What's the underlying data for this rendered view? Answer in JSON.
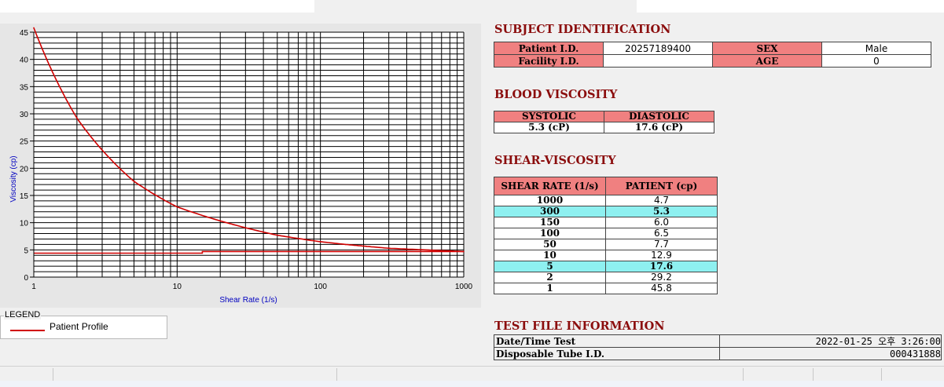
{
  "chart_data": {
    "type": "line",
    "xlabel": "Shear Rate (1/s)",
    "ylabel": "Viscosity (cp)",
    "xscale": "log",
    "xlim": [
      1,
      1000
    ],
    "ylim": [
      0,
      45
    ],
    "x_ticks": [
      "1",
      "10",
      "100",
      "1000"
    ],
    "y_ticks": [
      "0",
      "5",
      "10",
      "15",
      "20",
      "25",
      "30",
      "35",
      "40",
      "45"
    ],
    "grid": true,
    "series": [
      {
        "name": "Patient Profile",
        "color": "#d00000",
        "x": [
          1,
          2,
          5,
          10,
          50,
          100,
          150,
          300,
          1000
        ],
        "y": [
          45.8,
          29.2,
          17.6,
          12.9,
          7.7,
          6.5,
          6.0,
          5.3,
          4.7
        ]
      },
      {
        "color": "#d00000",
        "x": [
          1,
          15,
          15,
          1000
        ],
        "y": [
          4.4,
          4.4,
          4.7,
          4.7
        ]
      }
    ]
  },
  "legend": {
    "title": "LEGEND",
    "label": "Patient Profile"
  },
  "subject": {
    "title": "SUBJECT IDENTIFICATION",
    "patient_id_label": "Patient I.D.",
    "patient_id": "20257189400",
    "facility_id_label": "Facility I.D.",
    "facility_id": "",
    "sex_label": "SEX",
    "sex": "Male",
    "age_label": "AGE",
    "age": "0"
  },
  "blood": {
    "title": "BLOOD VISCOSITY",
    "systolic_label": "SYSTOLIC",
    "diastolic_label": "DIASTOLIC",
    "systolic": "5.3 (cP)",
    "diastolic": "17.6 (cP)"
  },
  "shear": {
    "title": "SHEAR-VISCOSITY",
    "col1": "SHEAR RATE (1/s)",
    "col2": "PATIENT (cp)",
    "rows": [
      {
        "rate": "1000",
        "value": "4.7",
        "hl": false
      },
      {
        "rate": "300",
        "value": "5.3",
        "hl": true
      },
      {
        "rate": "150",
        "value": "6.0",
        "hl": false
      },
      {
        "rate": "100",
        "value": "6.5",
        "hl": false
      },
      {
        "rate": "50",
        "value": "7.7",
        "hl": false
      },
      {
        "rate": "10",
        "value": "12.9",
        "hl": false
      },
      {
        "rate": "5",
        "value": "17.6",
        "hl": true
      },
      {
        "rate": "2",
        "value": "29.2",
        "hl": false
      },
      {
        "rate": "1",
        "value": "45.8",
        "hl": false
      }
    ]
  },
  "testfile": {
    "title": "TEST FILE INFORMATION",
    "datetime_label": "Date/Time Test",
    "datetime": "2022-01-25  오후 3:26:00",
    "tube_label": "Disposable Tube I.D.",
    "tube": "000431888"
  }
}
